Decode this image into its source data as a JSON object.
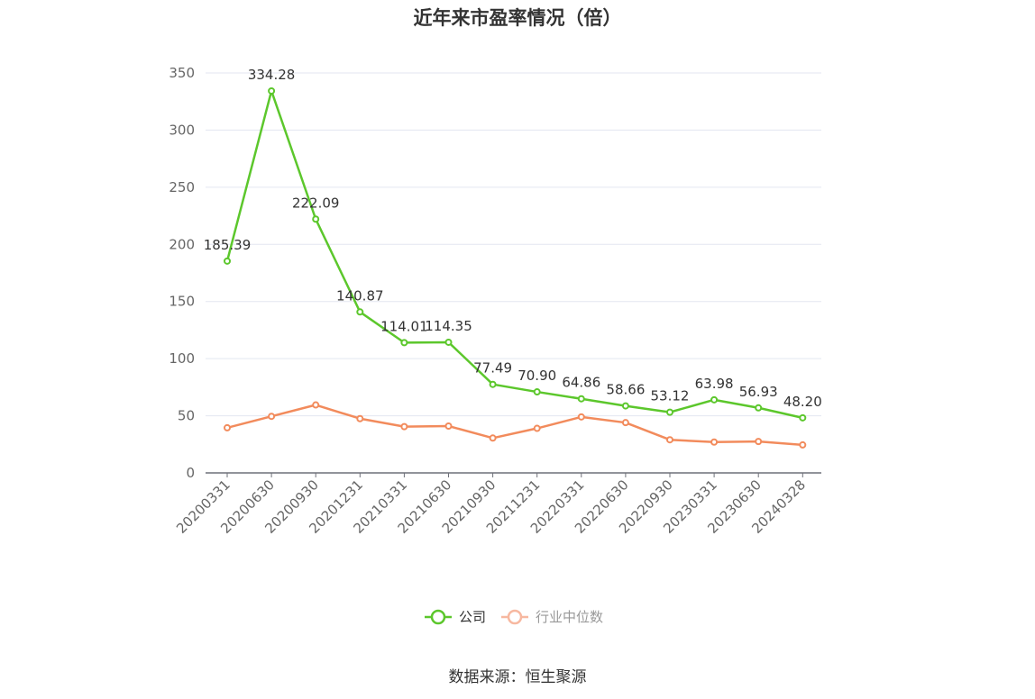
{
  "title": "近年来市盈率情况（倍）",
  "source": "数据来源：恒生聚源",
  "chart_data": {
    "type": "line",
    "title": "近年来市盈率情况（倍）",
    "categories": [
      "20200331",
      "20200630",
      "20200930",
      "20201231",
      "20210331",
      "20210630",
      "20210930",
      "20211231",
      "20220331",
      "20220630",
      "20220930",
      "20230331",
      "20230630",
      "20240328"
    ],
    "ylim": [
      0,
      350
    ],
    "yticks": [
      0,
      50,
      100,
      150,
      200,
      250,
      300,
      350
    ],
    "grid": true,
    "legend_position": "bottom",
    "series": [
      {
        "name": "公司",
        "color": "#5cc72c",
        "values": [
          185.39,
          334.28,
          222.09,
          140.87,
          114.01,
          114.35,
          77.49,
          70.9,
          64.86,
          58.66,
          53.12,
          63.98,
          56.93,
          48.2
        ],
        "labels": [
          "185.39",
          "334.28",
          "222.09",
          "140.87",
          "114.01",
          "114.35",
          "77.49",
          "70.90",
          "64.86",
          "58.66",
          "53.12",
          "63.98",
          "56.93",
          "48.20"
        ],
        "show_labels": true
      },
      {
        "name": "行业中位数",
        "color": "#f28b5c",
        "legend_color": "#f7b8a0",
        "values": [
          39.5,
          49.5,
          59.5,
          47.5,
          40.5,
          41.0,
          30.5,
          39.0,
          49.0,
          44.0,
          29.0,
          27.0,
          27.5,
          24.5
        ],
        "show_labels": false
      }
    ]
  }
}
